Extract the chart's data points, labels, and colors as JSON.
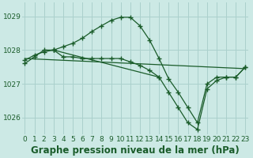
{
  "bg_color": "#cce9e5",
  "grid_color": "#aad0cc",
  "line_color": "#1a5c2a",
  "title": "Graphe pression niveau de la mer (hPa)",
  "xlim": [
    -0.3,
    23.3
  ],
  "ylim": [
    1025.5,
    1029.4
  ],
  "yticks": [
    1026,
    1027,
    1028,
    1029
  ],
  "xticks": [
    0,
    1,
    2,
    3,
    4,
    5,
    6,
    7,
    8,
    9,
    10,
    11,
    12,
    13,
    14,
    15,
    16,
    17,
    18,
    19,
    20,
    21,
    22,
    23
  ],
  "series": [
    {
      "x": [
        0,
        1,
        2,
        3,
        4,
        5,
        6,
        7,
        8,
        9,
        10,
        11,
        12,
        13,
        14
      ],
      "y": [
        1027.7,
        1027.85,
        1027.95,
        1028.0,
        1027.8,
        1027.8,
        1027.75,
        1027.75,
        1027.75,
        1027.75,
        1027.75,
        1027.65,
        1027.55,
        1027.4,
        1027.2
      ],
      "marker": true
    },
    {
      "x": [
        0,
        1,
        2,
        3,
        4,
        5,
        6,
        7,
        8,
        9,
        10,
        11,
        12,
        13,
        14,
        15,
        16,
        17,
        18,
        19,
        20,
        21,
        22,
        23
      ],
      "y": [
        1027.6,
        1027.8,
        1028.0,
        1028.0,
        1028.1,
        1028.2,
        1028.35,
        1028.55,
        1028.72,
        1028.88,
        1028.97,
        1028.97,
        1028.72,
        1028.3,
        1027.75,
        1027.15,
        1026.75,
        1026.3,
        1025.85,
        1027.0,
        1027.2,
        1027.2,
        1027.2,
        1027.5
      ],
      "marker": true
    },
    {
      "x": [
        3,
        14,
        15,
        16,
        17,
        18,
        19,
        20,
        21,
        22,
        23
      ],
      "y": [
        1028.0,
        1027.2,
        1026.75,
        1026.3,
        1025.85,
        1025.65,
        1026.85,
        1027.1,
        1027.2,
        1027.2,
        1027.5
      ],
      "marker": true
    },
    {
      "x": [
        0,
        23
      ],
      "y": [
        1027.75,
        1027.45
      ],
      "marker": false
    }
  ],
  "title_fontsize": 8.5,
  "tick_fontsize": 6.5
}
